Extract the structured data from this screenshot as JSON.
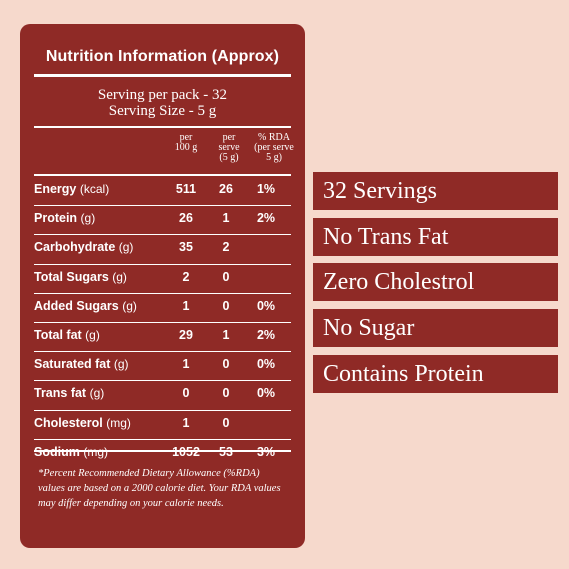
{
  "panel": {
    "title": "Nutrition Information (Approx)",
    "serving_per_pack": "Serving per pack - 32",
    "serving_size": "Serving Size - 5 g",
    "columns": [
      {
        "line1": "per",
        "line2": "100 g",
        "line3": ""
      },
      {
        "line1": "per",
        "line2": "serve",
        "line3": "(5 g)"
      },
      {
        "line1": "% RDA",
        "line2": "(per serve",
        "line3": "5 g)"
      }
    ],
    "rows": [
      {
        "name": "Energy",
        "unit": "(kcal)",
        "per100": "511",
        "perserve": "26",
        "rda": "1%"
      },
      {
        "name": "Protein",
        "unit": "(g)",
        "per100": "26",
        "perserve": "1",
        "rda": "2%"
      },
      {
        "name": "Carbohydrate",
        "unit": "(g)",
        "per100": "35",
        "perserve": "2",
        "rda": ""
      },
      {
        "name": "Total Sugars",
        "unit": "(g)",
        "per100": "2",
        "perserve": "0",
        "rda": ""
      },
      {
        "name": "Added Sugars",
        "unit": "(g)",
        "per100": "1",
        "perserve": "0",
        "rda": "0%"
      },
      {
        "name": "Total fat",
        "unit": "(g)",
        "per100": "29",
        "perserve": "1",
        "rda": "2%"
      },
      {
        "name": "Saturated fat",
        "unit": "(g)",
        "per100": "1",
        "perserve": "0",
        "rda": "0%"
      },
      {
        "name": "Trans fat",
        "unit": "(g)",
        "per100": "0",
        "perserve": "0",
        "rda": "0%"
      },
      {
        "name": "Cholesterol",
        "unit": "(mg)",
        "per100": "1",
        "perserve": "0",
        "rda": ""
      },
      {
        "name": "Sodium",
        "unit": "(mg)",
        "per100": "1052",
        "perserve": "53",
        "rda": "3%"
      }
    ],
    "footnote": "*Percent Recommended Dietary Allowance (%RDA) values are based on a 2000 calorie diet. Your RDA values may differ depending on your calorie needs."
  },
  "badges": [
    "32 Servings",
    "No Trans Fat",
    "Zero Cholestrol",
    "No Sugar",
    "Contains Protein"
  ],
  "colors": {
    "background": "#f6d9cc",
    "brand_red": "#8f2a26",
    "text": "#ffffff"
  }
}
